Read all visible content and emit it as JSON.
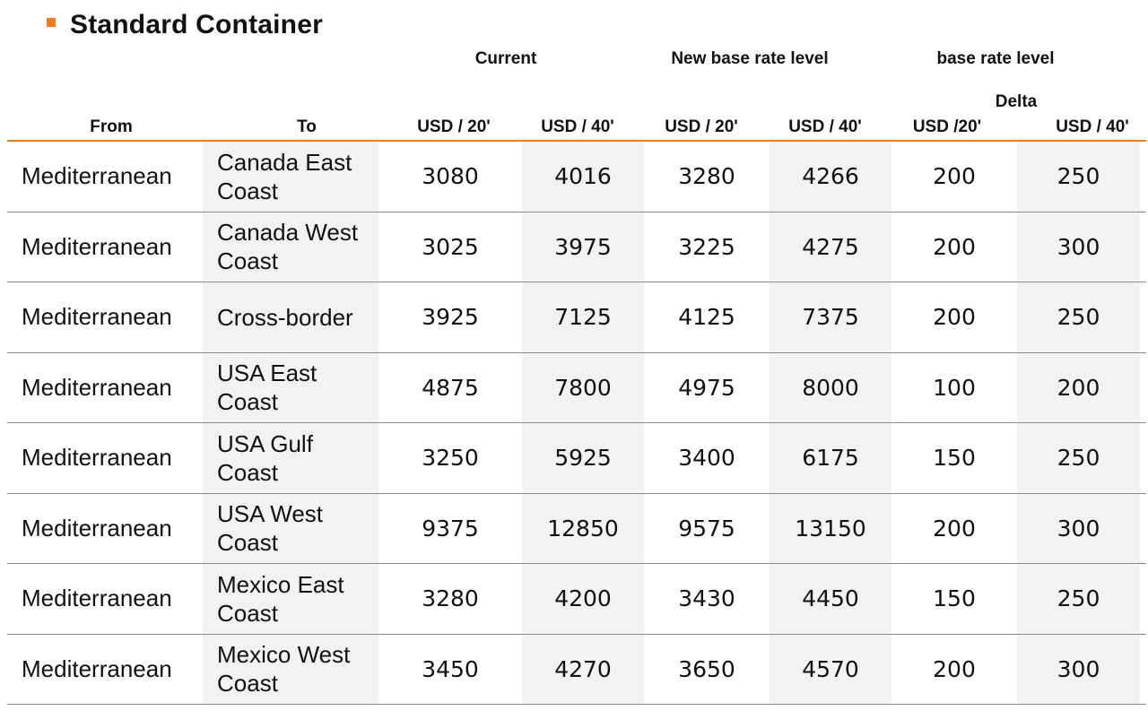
{
  "title": "Standard Container",
  "headers": {
    "group_current": "Current",
    "group_new": "New base rate level",
    "group_delta_top": "base rate level",
    "group_delta": "Delta",
    "from": "From",
    "to": "To",
    "cur_20": "USD / 20'",
    "cur_40": "USD / 40'",
    "new_20": "USD / 20'",
    "new_40": "USD / 40'",
    "delta_20": "USD /20'",
    "delta_40": "USD / 40'"
  },
  "rows": [
    {
      "from": "Mediterranean",
      "to": "Canada East Coast",
      "cur_20": "3080",
      "cur_40": "4016",
      "new_20": "3280",
      "new_40": "4266",
      "delta_20": "200",
      "delta_40": "250"
    },
    {
      "from": "Mediterranean",
      "to": "Canada West Coast",
      "cur_20": "3025",
      "cur_40": "3975",
      "new_20": "3225",
      "new_40": "4275",
      "delta_20": "200",
      "delta_40": "300"
    },
    {
      "from": "Mediterranean",
      "to": "Cross-border",
      "cur_20": "3925",
      "cur_40": "7125",
      "new_20": "4125",
      "new_40": "7375",
      "delta_20": "200",
      "delta_40": "250"
    },
    {
      "from": "Mediterranean",
      "to": "USA East Coast",
      "cur_20": "4875",
      "cur_40": "7800",
      "new_20": "4975",
      "new_40": "8000",
      "delta_20": "100",
      "delta_40": "200"
    },
    {
      "from": "Mediterranean",
      "to": "USA Gulf Coast",
      "cur_20": "3250",
      "cur_40": "5925",
      "new_20": "3400",
      "new_40": "6175",
      "delta_20": "150",
      "delta_40": "250"
    },
    {
      "from": "Mediterranean",
      "to": "USA West Coast",
      "cur_20": "9375",
      "cur_40": "12850",
      "new_20": "9575",
      "new_40": "13150",
      "delta_20": "200",
      "delta_40": "300"
    },
    {
      "from": "Mediterranean",
      "to": "Mexico East Coast",
      "cur_20": "3280",
      "cur_40": "4200",
      "new_20": "3430",
      "new_40": "4450",
      "delta_20": "150",
      "delta_40": "250"
    },
    {
      "from": "Mediterranean",
      "to": "Mexico West Coast",
      "cur_20": "3450",
      "cur_40": "4270",
      "new_20": "3650",
      "new_40": "4570",
      "delta_20": "200",
      "delta_40": "300"
    }
  ]
}
